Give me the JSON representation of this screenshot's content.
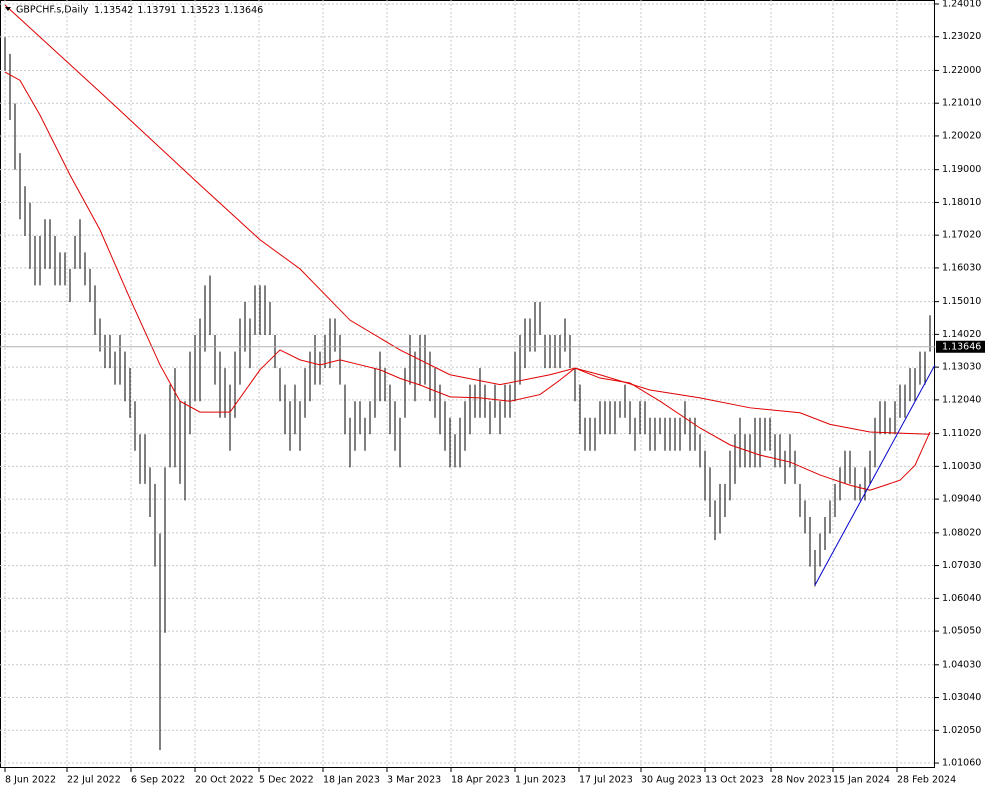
{
  "chart_data": {
    "type": "ohlc",
    "title": "GBPCHF.s,Daily",
    "quote": [
      1.13542,
      1.13791,
      1.13523,
      1.13646
    ],
    "current_price": 1.13646,
    "bar_color": "#000000",
    "grid": true,
    "xlim": [
      -2.5,
      465
    ],
    "ylim": [
      1.0091,
      1.2413
    ],
    "yticks": [
      {
        "value": 1.2401,
        "label": "1.24010"
      },
      {
        "value": 1.2302,
        "label": "1.23020"
      },
      {
        "value": 1.22,
        "label": "1.22000"
      },
      {
        "value": 1.2101,
        "label": "1.21010"
      },
      {
        "value": 1.2002,
        "label": "1.20020"
      },
      {
        "value": 1.19,
        "label": "1.19000"
      },
      {
        "value": 1.1801,
        "label": "1.18010"
      },
      {
        "value": 1.1702,
        "label": "1.17020"
      },
      {
        "value": 1.1603,
        "label": "1.16030"
      },
      {
        "value": 1.1501,
        "label": "1.15010"
      },
      {
        "value": 1.1402,
        "label": "1.14020"
      },
      {
        "value": 1.1303,
        "label": "1.13030"
      },
      {
        "value": 1.1204,
        "label": "1.12040"
      },
      {
        "value": 1.1102,
        "label": "1.11020"
      },
      {
        "value": 1.1003,
        "label": "1.10030"
      },
      {
        "value": 1.0904,
        "label": "1.09040"
      },
      {
        "value": 1.0802,
        "label": "1.08020"
      },
      {
        "value": 1.0703,
        "label": "1.07030"
      },
      {
        "value": 1.0604,
        "label": "1.06040"
      },
      {
        "value": 1.0505,
        "label": "1.05050"
      },
      {
        "value": 1.0403,
        "label": "1.04030"
      },
      {
        "value": 1.0304,
        "label": "1.03040"
      },
      {
        "value": 1.0205,
        "label": "1.02050"
      },
      {
        "value": 1.0106,
        "label": "1.01060"
      }
    ],
    "xticks": [
      {
        "value": 0,
        "label": "8 Jun 2022"
      },
      {
        "value": 31,
        "label": "22 Jul 2022"
      },
      {
        "value": 63,
        "label": "6 Sep 2022"
      },
      {
        "value": 95,
        "label": "20 Oct 2022"
      },
      {
        "value": 127,
        "label": "5 Dec 2022"
      },
      {
        "value": 159,
        "label": "18 Jan 2023"
      },
      {
        "value": 191,
        "label": "3 Mar 2023"
      },
      {
        "value": 223,
        "label": "18 Apr 2023"
      },
      {
        "value": 255,
        "label": "1 Jun 2023"
      },
      {
        "value": 287,
        "label": "17 Jul 2023"
      },
      {
        "value": 318,
        "label": "30 Aug 2023"
      },
      {
        "value": 350,
        "label": "13 Oct 2023"
      },
      {
        "value": 383,
        "label": "28 Nov 2023"
      },
      {
        "value": 414,
        "label": "15 Jan 2024"
      },
      {
        "value": 446,
        "label": "28 Feb 2024"
      }
    ],
    "x": [
      0,
      2.5,
      5,
      7.5,
      10,
      12.5,
      15,
      17.5,
      20,
      22.5,
      25,
      27.5,
      30,
      32.5,
      35,
      37.5,
      40,
      42.5,
      45,
      47.5,
      50,
      52.5,
      55,
      57.5,
      60,
      62.5,
      65,
      67.5,
      70,
      72.5,
      75,
      77.5,
      80,
      82.5,
      85,
      87.5,
      90,
      92.5,
      95,
      97.5,
      100,
      102.5,
      105,
      107.5,
      110,
      112.5,
      115,
      117.5,
      120,
      122.5,
      125,
      127.5,
      130,
      132.5,
      135,
      137.5,
      140,
      142.5,
      145,
      147.5,
      150,
      152.5,
      155,
      157.5,
      160,
      162.5,
      165,
      167.5,
      170,
      172.5,
      175,
      177.5,
      180,
      182.5,
      185,
      187.5,
      190,
      192.5,
      195,
      197.5,
      200,
      202.5,
      205,
      207.5,
      210,
      212.5,
      215,
      217.5,
      220,
      222.5,
      225,
      227.5,
      230,
      232.5,
      235,
      237.5,
      240,
      242.5,
      245,
      247.5,
      250,
      252.5,
      255,
      257.5,
      260,
      262.5,
      265,
      267.5,
      270,
      272.5,
      275,
      277.5,
      280,
      282.5,
      285,
      287.5,
      290,
      292.5,
      295,
      297.5,
      300,
      302.5,
      305,
      307.5,
      310,
      312.5,
      315,
      317.5,
      320,
      322.5,
      325,
      327.5,
      330,
      332.5,
      335,
      337.5,
      340,
      342.5,
      345,
      347.5,
      350,
      352.5,
      355,
      357.5,
      360,
      362.5,
      365,
      367.5,
      370,
      372.5,
      375,
      377.5,
      380,
      382.5,
      385,
      387.5,
      390,
      392.5,
      395,
      397.5,
      400,
      402.5,
      405,
      407.5,
      410,
      412.5,
      415,
      417.5,
      420,
      422.5,
      425,
      427.5,
      430,
      432.5,
      435,
      437.5,
      440,
      442.5,
      445,
      447.5,
      450,
      452.5,
      455,
      457.5,
      460,
      462.5
    ],
    "high": [
      1.23,
      1.225,
      1.21,
      1.195,
      1.185,
      1.18,
      1.17,
      1.17,
      1.175,
      1.175,
      1.17,
      1.165,
      1.165,
      1.16,
      1.17,
      1.175,
      1.165,
      1.16,
      1.155,
      1.145,
      1.14,
      1.14,
      1.135,
      1.14,
      1.135,
      1.13,
      1.12,
      1.11,
      1.11,
      1.1,
      1.095,
      1.08,
      1.1,
      1.125,
      1.13,
      1.12,
      1.12,
      1.135,
      1.14,
      1.145,
      1.155,
      1.158,
      1.14,
      1.135,
      1.13,
      1.125,
      1.135,
      1.145,
      1.15,
      1.145,
      1.155,
      1.155,
      1.155,
      1.15,
      1.14,
      1.13,
      1.125,
      1.12,
      1.125,
      1.12,
      1.13,
      1.135,
      1.14,
      1.135,
      1.14,
      1.145,
      1.145,
      1.14,
      1.125,
      1.115,
      1.12,
      1.12,
      1.115,
      1.12,
      1.13,
      1.135,
      1.13,
      1.125,
      1.12,
      1.115,
      1.13,
      1.14,
      1.135,
      1.14,
      1.14,
      1.135,
      1.13,
      1.125,
      1.12,
      1.115,
      1.11,
      1.115,
      1.12,
      1.125,
      1.125,
      1.13,
      1.125,
      1.12,
      1.125,
      1.12,
      1.125,
      1.125,
      1.135,
      1.14,
      1.145,
      1.145,
      1.15,
      1.15,
      1.14,
      1.14,
      1.14,
      1.14,
      1.145,
      1.14,
      1.13,
      1.125,
      1.115,
      1.115,
      1.115,
      1.12,
      1.12,
      1.12,
      1.12,
      1.12,
      1.125,
      1.12,
      1.115,
      1.12,
      1.12,
      1.115,
      1.115,
      1.115,
      1.115,
      1.115,
      1.115,
      1.115,
      1.12,
      1.115,
      1.115,
      1.11,
      1.105,
      1.1,
      1.09,
      1.095,
      1.095,
      1.105,
      1.11,
      1.115,
      1.11,
      1.11,
      1.115,
      1.115,
      1.115,
      1.115,
      1.11,
      1.11,
      1.105,
      1.11,
      1.105,
      1.095,
      1.09,
      1.085,
      1.075,
      1.08,
      1.085,
      1.09,
      1.095,
      1.1,
      1.105,
      1.105,
      1.1,
      1.095,
      1.1,
      1.105,
      1.115,
      1.12,
      1.12,
      1.115,
      1.12,
      1.125,
      1.125,
      1.13,
      1.13,
      1.135,
      1.135,
      1.146
    ],
    "low": [
      1.22,
      1.205,
      1.19,
      1.175,
      1.17,
      1.16,
      1.155,
      1.155,
      1.16,
      1.16,
      1.155,
      1.155,
      1.155,
      1.15,
      1.16,
      1.16,
      1.155,
      1.15,
      1.14,
      1.135,
      1.13,
      1.13,
      1.125,
      1.125,
      1.12,
      1.115,
      1.105,
      1.095,
      1.095,
      1.085,
      1.07,
      1.0145,
      1.05,
      1.1,
      1.1,
      1.095,
      1.09,
      1.11,
      1.12,
      1.12,
      1.135,
      1.14,
      1.125,
      1.115,
      1.115,
      1.105,
      1.115,
      1.125,
      1.135,
      1.13,
      1.14,
      1.14,
      1.14,
      1.14,
      1.13,
      1.12,
      1.11,
      1.105,
      1.11,
      1.105,
      1.115,
      1.12,
      1.125,
      1.125,
      1.13,
      1.13,
      1.135,
      1.125,
      1.11,
      1.1,
      1.105,
      1.11,
      1.105,
      1.11,
      1.115,
      1.12,
      1.12,
      1.11,
      1.105,
      1.1,
      1.115,
      1.125,
      1.12,
      1.125,
      1.125,
      1.12,
      1.115,
      1.11,
      1.105,
      1.1,
      1.1,
      1.1,
      1.105,
      1.11,
      1.115,
      1.115,
      1.115,
      1.11,
      1.115,
      1.11,
      1.115,
      1.115,
      1.12,
      1.125,
      1.13,
      1.135,
      1.135,
      1.14,
      1.13,
      1.13,
      1.13,
      1.13,
      1.135,
      1.13,
      1.12,
      1.11,
      1.105,
      1.105,
      1.105,
      1.11,
      1.11,
      1.11,
      1.11,
      1.115,
      1.115,
      1.11,
      1.105,
      1.11,
      1.11,
      1.105,
      1.105,
      1.11,
      1.105,
      1.105,
      1.105,
      1.105,
      1.11,
      1.105,
      1.105,
      1.1,
      1.09,
      1.085,
      1.078,
      1.08,
      1.085,
      1.09,
      1.095,
      1.1,
      1.1,
      1.1,
      1.1,
      1.1,
      1.105,
      1.105,
      1.1,
      1.1,
      1.095,
      1.1,
      1.095,
      1.085,
      1.08,
      1.07,
      1.064,
      1.07,
      1.075,
      1.08,
      1.085,
      1.09,
      1.095,
      1.095,
      1.09,
      1.09,
      1.09,
      1.095,
      1.1,
      1.11,
      1.11,
      1.11,
      1.11,
      1.115,
      1.115,
      1.12,
      1.12,
      1.125,
      1.125,
      1.135
    ],
    "moving_averages": [
      {
        "color": "#e00000",
        "x": [
          0,
          47.5,
          97.5,
          127.5,
          147.5,
          172.5,
          197.5,
          222.5,
          247.5,
          272.5,
          285,
          297.5,
          322.5,
          347.5,
          372.5,
          397.5,
          412.5,
          432.5,
          462.5
        ],
        "values": [
          1.2398,
          1.2135,
          1.1854,
          1.1688,
          1.16,
          1.1445,
          1.1355,
          1.128,
          1.125,
          1.128,
          1.13,
          1.128,
          1.1234,
          1.121,
          1.118,
          1.1165,
          1.113,
          1.1107,
          1.11
        ]
      },
      {
        "color": "#e00000",
        "x": [
          0,
          7.5,
          17.5,
          32.5,
          47.5,
          62.5,
          77.5,
          87.5,
          97.5,
          112.5,
          127.5,
          137.5,
          147.5,
          157.5,
          167.5,
          177.5,
          187.5,
          197.5,
          207.5,
          222.5,
          237.5,
          252.5,
          267.5,
          277.5,
          285,
          297.5,
          312.5,
          327.5,
          347.5,
          362.5,
          377.5,
          392.5,
          407.5,
          422.5,
          432.5,
          447.5,
          455,
          462.5
        ],
        "values": [
          1.2195,
          1.217,
          1.2065,
          1.1884,
          1.1718,
          1.151,
          1.131,
          1.12,
          1.1167,
          1.1167,
          1.1295,
          1.1355,
          1.1325,
          1.131,
          1.1325,
          1.131,
          1.1295,
          1.1269,
          1.1249,
          1.1213,
          1.121,
          1.12,
          1.122,
          1.1264,
          1.13,
          1.127,
          1.1255,
          1.12,
          1.1119,
          1.1068,
          1.1037,
          1.1016,
          1.0977,
          1.0946,
          1.0931,
          1.0961,
          1.1006,
          1.1107
        ]
      }
    ],
    "trendline": {
      "color": "#0000cc",
      "x": [
        405,
        465
      ],
      "values": [
        1.0644,
        1.131
      ]
    }
  }
}
